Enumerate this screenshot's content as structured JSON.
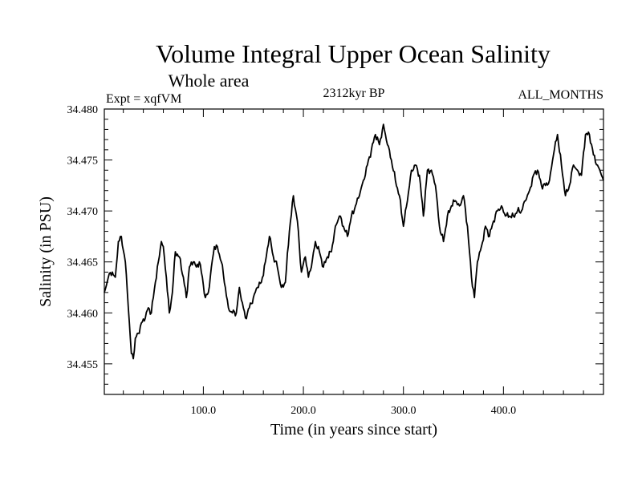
{
  "chart_data": {
    "type": "line",
    "title": "Volume Integral Upper Ocean Salinity",
    "subtitle": "Whole area",
    "experiment_label": "Expt = xqfVM",
    "period_label": "2312kyr BP",
    "months_label": "ALL_MONTHS",
    "xlabel": "Time (in years since start)",
    "ylabel": "Salinity (in PSU)",
    "xlim": [
      1,
      500
    ],
    "ylim": [
      34.452,
      34.48
    ],
    "x_ticks": [
      100,
      200,
      300,
      400
    ],
    "x_tick_labels": [
      "100.0",
      "200.0",
      "300.0",
      "400.0"
    ],
    "y_ticks": [
      34.455,
      34.46,
      34.465,
      34.47,
      34.475,
      34.48
    ],
    "y_tick_labels": [
      "34.455",
      "34.460",
      "34.465",
      "34.470",
      "34.475",
      "34.480"
    ],
    "series": [
      {
        "name": "Salinity",
        "x": [
          1,
          5,
          9,
          12,
          15,
          18,
          22,
          25,
          28,
          30,
          32,
          35,
          38,
          42,
          45,
          48,
          50,
          52,
          55,
          58,
          60,
          63,
          66,
          69,
          72,
          76,
          80,
          83,
          86,
          90,
          93,
          96,
          99,
          102,
          105,
          108,
          111,
          114,
          118,
          122,
          125,
          129,
          133,
          136,
          139,
          142,
          146,
          150,
          154,
          158,
          162,
          166,
          170,
          174,
          178,
          182,
          186,
          190,
          194,
          198,
          202,
          205,
          208,
          212,
          216,
          220,
          224,
          228,
          232,
          236,
          240,
          244,
          248,
          252,
          256,
          260,
          264,
          268,
          272,
          276,
          280,
          284,
          288,
          292,
          296,
          300,
          304,
          308,
          312,
          316,
          320,
          324,
          328,
          332,
          336,
          340,
          344,
          348,
          352,
          356,
          360,
          364,
          368,
          371,
          374,
          378,
          382,
          386,
          390,
          394,
          398,
          402,
          406,
          410,
          414,
          418,
          422,
          426,
          430,
          434,
          438,
          442,
          446,
          450,
          454,
          458,
          462,
          466,
          470,
          474,
          478,
          482,
          486,
          490,
          494,
          498,
          500
        ],
        "values": [
          34.462,
          34.4635,
          34.464,
          34.4635,
          34.467,
          34.4675,
          34.465,
          34.4605,
          34.456,
          34.4555,
          34.4575,
          34.458,
          34.459,
          34.4595,
          34.4605,
          34.46,
          34.4615,
          34.463,
          34.465,
          34.467,
          34.4665,
          34.4635,
          34.46,
          34.462,
          34.466,
          34.4655,
          34.4635,
          34.4615,
          34.4645,
          34.465,
          34.4645,
          34.465,
          34.4635,
          34.4615,
          34.462,
          34.4645,
          34.4665,
          34.4665,
          34.465,
          34.4625,
          34.4605,
          34.46,
          34.46,
          34.4625,
          34.461,
          34.4595,
          34.4605,
          34.4615,
          34.4625,
          34.463,
          34.465,
          34.4675,
          34.4655,
          34.4645,
          34.4625,
          34.463,
          34.468,
          34.4715,
          34.469,
          34.464,
          34.4655,
          34.4635,
          34.4645,
          34.467,
          34.466,
          34.4645,
          34.4655,
          34.466,
          34.4685,
          34.4695,
          34.4685,
          34.4675,
          34.4695,
          34.4705,
          34.4715,
          34.473,
          34.4745,
          34.476,
          34.4775,
          34.4765,
          34.4785,
          34.4765,
          34.475,
          34.473,
          34.4715,
          34.4685,
          34.471,
          34.474,
          34.4745,
          34.4735,
          34.4695,
          34.474,
          34.474,
          34.4725,
          34.4685,
          34.467,
          34.4695,
          34.4705,
          34.471,
          34.4705,
          34.4715,
          34.4685,
          34.4635,
          34.4615,
          34.465,
          34.4665,
          34.4685,
          34.4675,
          34.469,
          34.47,
          34.4705,
          34.4695,
          34.4695,
          34.4695,
          34.47,
          34.47,
          34.471,
          34.472,
          34.4735,
          34.474,
          34.4725,
          34.4725,
          34.473,
          34.4755,
          34.4775,
          34.4745,
          34.4715,
          34.4725,
          34.4745,
          34.474,
          34.4735,
          34.4775,
          34.4775,
          34.4755,
          34.4745,
          34.4735,
          34.473
        ]
      }
    ]
  }
}
